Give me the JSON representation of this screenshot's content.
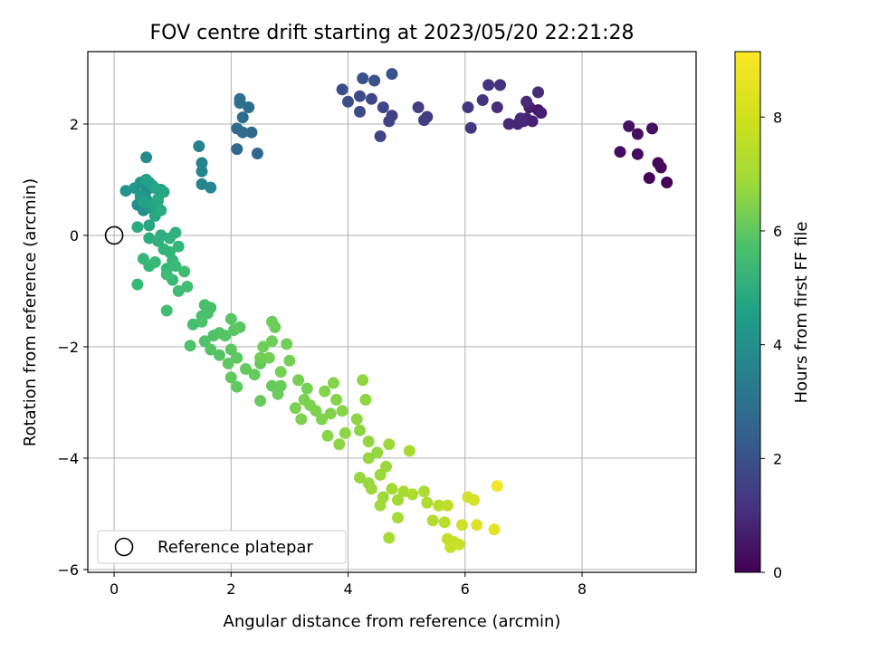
{
  "chart_data": {
    "type": "scatter",
    "title": "FOV centre drift starting at 2023/05/20 22:21:28",
    "xlabel": "Angular distance from reference (arcmin)",
    "ylabel": "Rotation from reference (arcmin)",
    "xlim": [
      -0.45,
      9.95
    ],
    "ylim": [
      -6.05,
      3.3
    ],
    "xticks": [
      0,
      2,
      4,
      6,
      8
    ],
    "yticks": [
      -6,
      -4,
      -2,
      0,
      2
    ],
    "grid": true,
    "colormap": "viridis",
    "colorbar": {
      "label": "Hours from first FF file",
      "range": [
        0,
        9.15
      ],
      "ticks": [
        0,
        2,
        4,
        6,
        8
      ]
    },
    "legend": {
      "position": "lower-left",
      "entries": [
        "Reference platepar"
      ]
    },
    "reference_point": {
      "x": 0,
      "y": 0,
      "label": "Reference platepar"
    },
    "series": [
      {
        "points": [
          [
            9.45,
            0.95,
            0.05
          ],
          [
            9.15,
            1.03,
            0.1
          ],
          [
            9.35,
            1.22,
            0.15
          ],
          [
            9.3,
            1.3,
            0.2
          ],
          [
            8.95,
            1.46,
            0.25
          ],
          [
            8.65,
            1.5,
            0.3
          ],
          [
            8.95,
            1.82,
            0.35
          ],
          [
            9.2,
            1.92,
            0.4
          ],
          [
            8.8,
            1.96,
            0.45
          ],
          [
            7.25,
            2.25,
            0.6
          ],
          [
            7.1,
            2.3,
            0.7
          ],
          [
            7.3,
            2.2,
            0.75
          ],
          [
            7.05,
            2.1,
            0.8
          ],
          [
            7.15,
            2.05,
            0.85
          ],
          [
            7.0,
            2.05,
            0.9
          ],
          [
            6.9,
            2.0,
            0.95
          ],
          [
            6.75,
            2.0,
            1.0
          ],
          [
            6.95,
            2.1,
            1.05
          ],
          [
            7.05,
            2.4,
            1.1
          ],
          [
            7.25,
            2.57,
            1.15
          ],
          [
            6.55,
            2.3,
            1.2
          ],
          [
            6.6,
            2.7,
            1.3
          ],
          [
            6.4,
            2.7,
            1.35
          ],
          [
            6.3,
            2.43,
            1.4
          ],
          [
            6.1,
            1.93,
            1.45
          ],
          [
            6.05,
            2.3,
            1.5
          ],
          [
            5.35,
            2.13,
            1.6
          ],
          [
            5.3,
            2.07,
            1.65
          ],
          [
            5.2,
            2.3,
            1.7
          ],
          [
            4.75,
            2.15,
            1.8
          ],
          [
            4.7,
            2.05,
            1.85
          ],
          [
            4.55,
            1.78,
            1.9
          ],
          [
            4.6,
            2.3,
            1.95
          ],
          [
            4.4,
            2.45,
            2.0
          ],
          [
            4.2,
            2.5,
            2.05
          ],
          [
            4.2,
            2.22,
            2.1
          ],
          [
            4.0,
            2.4,
            2.15
          ],
          [
            3.9,
            2.62,
            2.2
          ],
          [
            4.25,
            2.82,
            2.3
          ],
          [
            4.45,
            2.78,
            2.35
          ],
          [
            4.75,
            2.9,
            2.4
          ],
          [
            2.45,
            1.47,
            3.0
          ],
          [
            2.35,
            1.85,
            3.05
          ],
          [
            2.1,
            1.55,
            3.1
          ],
          [
            2.2,
            1.85,
            3.15
          ],
          [
            2.1,
            1.92,
            3.2
          ],
          [
            2.2,
            2.12,
            3.25
          ],
          [
            2.3,
            2.3,
            3.3
          ],
          [
            2.15,
            2.38,
            3.35
          ],
          [
            2.15,
            2.45,
            3.4
          ],
          [
            1.45,
            1.6,
            4.0
          ],
          [
            1.5,
            1.3,
            4.05
          ],
          [
            1.5,
            1.15,
            4.1
          ],
          [
            1.5,
            0.92,
            4.15
          ],
          [
            1.65,
            0.86,
            4.2
          ],
          [
            0.55,
            1.4,
            4.4
          ],
          [
            0.4,
            0.55,
            4.5
          ],
          [
            0.5,
            0.45,
            4.55
          ],
          [
            0.55,
            0.8,
            4.6
          ],
          [
            0.45,
            0.95,
            4.65
          ],
          [
            0.6,
            0.95,
            4.7
          ],
          [
            0.2,
            0.8,
            4.75
          ],
          [
            0.35,
            0.85,
            4.8
          ],
          [
            0.45,
            0.7,
            4.85
          ],
          [
            0.55,
            0.65,
            4.9
          ],
          [
            0.6,
            0.5,
            4.95
          ],
          [
            0.7,
            0.45,
            5.0
          ],
          [
            0.75,
            0.65,
            5.05
          ],
          [
            0.8,
            0.82,
            5.1
          ],
          [
            0.65,
            0.9,
            5.15
          ],
          [
            0.55,
            1.0,
            5.2
          ],
          [
            0.5,
            0.6,
            5.25
          ],
          [
            0.65,
            0.55,
            5.3
          ],
          [
            0.7,
            0.85,
            5.35
          ],
          [
            0.85,
            0.78,
            5.4
          ],
          [
            0.6,
            0.18,
            5.45
          ],
          [
            0.7,
            0.35,
            5.5
          ],
          [
            0.75,
            0.62,
            5.55
          ],
          [
            0.8,
            0.45,
            5.6
          ],
          [
            0.4,
            0.15,
            5.65
          ],
          [
            0.6,
            -0.05,
            5.7
          ],
          [
            0.8,
            0.0,
            5.75
          ],
          [
            0.75,
            -0.1,
            5.8
          ],
          [
            0.95,
            -0.05,
            5.85
          ],
          [
            1.05,
            0.05,
            5.9
          ],
          [
            0.85,
            -0.25,
            5.95
          ],
          [
            1.1,
            -0.2,
            6.0
          ],
          [
            0.95,
            -0.3,
            6.02
          ],
          [
            1.0,
            -0.45,
            6.05
          ],
          [
            0.9,
            -0.6,
            6.08
          ],
          [
            0.6,
            -0.55,
            6.1
          ],
          [
            0.5,
            -0.42,
            6.12
          ],
          [
            0.7,
            -0.48,
            6.15
          ],
          [
            0.4,
            -0.88,
            6.18
          ],
          [
            1.05,
            -0.55,
            6.2
          ],
          [
            1.0,
            -0.8,
            6.22
          ],
          [
            0.9,
            -0.7,
            6.25
          ],
          [
            1.2,
            -0.65,
            6.27
          ],
          [
            1.1,
            -1.0,
            6.3
          ],
          [
            1.25,
            -0.92,
            6.32
          ],
          [
            0.9,
            -1.35,
            6.35
          ],
          [
            1.35,
            -1.6,
            6.4
          ],
          [
            1.5,
            -1.45,
            6.42
          ],
          [
            1.55,
            -1.25,
            6.45
          ],
          [
            1.6,
            -1.4,
            6.47
          ],
          [
            1.65,
            -1.3,
            6.5
          ],
          [
            1.5,
            -1.55,
            6.52
          ],
          [
            1.3,
            -1.98,
            6.55
          ],
          [
            1.55,
            -1.9,
            6.57
          ],
          [
            1.7,
            -1.8,
            6.6
          ],
          [
            1.8,
            -1.75,
            6.62
          ],
          [
            1.65,
            -2.05,
            6.65
          ],
          [
            1.8,
            -2.15,
            6.67
          ],
          [
            1.9,
            -1.8,
            6.7
          ],
          [
            2.0,
            -1.5,
            6.72
          ],
          [
            2.05,
            -1.7,
            6.75
          ],
          [
            2.15,
            -1.65,
            6.77
          ],
          [
            2.0,
            -2.05,
            6.8
          ],
          [
            2.1,
            -2.2,
            6.82
          ],
          [
            1.95,
            -2.3,
            6.85
          ],
          [
            2.0,
            -2.55,
            6.87
          ],
          [
            2.1,
            -2.72,
            6.9
          ],
          [
            2.25,
            -2.4,
            6.92
          ],
          [
            2.4,
            -2.5,
            6.94
          ],
          [
            2.5,
            -2.3,
            6.96
          ],
          [
            2.5,
            -2.97,
            6.98
          ],
          [
            2.7,
            -2.7,
            7.0
          ],
          [
            2.8,
            -2.85,
            7.02
          ],
          [
            2.85,
            -2.7,
            7.04
          ],
          [
            2.7,
            -1.55,
            7.06
          ],
          [
            2.75,
            -1.65,
            7.08
          ],
          [
            2.7,
            -1.9,
            7.1
          ],
          [
            2.55,
            -2.0,
            7.12
          ],
          [
            2.5,
            -2.2,
            7.14
          ],
          [
            2.65,
            -2.2,
            7.16
          ],
          [
            2.95,
            -1.95,
            7.18
          ],
          [
            3.0,
            -2.25,
            7.2
          ],
          [
            2.85,
            -2.45,
            7.22
          ],
          [
            3.15,
            -2.6,
            7.24
          ],
          [
            3.3,
            -2.75,
            7.26
          ],
          [
            3.25,
            -2.95,
            7.28
          ],
          [
            3.1,
            -3.1,
            7.3
          ],
          [
            3.2,
            -3.3,
            7.32
          ],
          [
            3.35,
            -3.05,
            7.34
          ],
          [
            3.45,
            -3.15,
            7.36
          ],
          [
            3.55,
            -3.3,
            7.38
          ],
          [
            3.7,
            -3.2,
            7.4
          ],
          [
            3.6,
            -2.8,
            7.42
          ],
          [
            3.75,
            -2.65,
            7.44
          ],
          [
            3.8,
            -2.95,
            7.46
          ],
          [
            3.9,
            -3.15,
            7.48
          ],
          [
            3.65,
            -3.6,
            7.5
          ],
          [
            3.85,
            -3.75,
            7.52
          ],
          [
            3.95,
            -3.55,
            7.54
          ],
          [
            4.15,
            -3.3,
            7.56
          ],
          [
            4.2,
            -3.5,
            7.58
          ],
          [
            4.25,
            -2.6,
            7.6
          ],
          [
            4.3,
            -2.95,
            7.62
          ],
          [
            4.35,
            -3.7,
            7.64
          ],
          [
            4.5,
            -3.9,
            7.66
          ],
          [
            4.35,
            -4.0,
            7.68
          ],
          [
            4.2,
            -4.35,
            7.7
          ],
          [
            4.35,
            -4.45,
            7.72
          ],
          [
            4.4,
            -4.55,
            7.74
          ],
          [
            4.55,
            -4.3,
            7.76
          ],
          [
            4.65,
            -4.15,
            7.78
          ],
          [
            4.7,
            -3.75,
            7.8
          ],
          [
            4.6,
            -4.7,
            7.82
          ],
          [
            4.55,
            -4.85,
            7.84
          ],
          [
            4.75,
            -4.55,
            7.86
          ],
          [
            4.85,
            -4.75,
            7.88
          ],
          [
            4.85,
            -5.07,
            7.9
          ],
          [
            4.7,
            -5.43,
            7.92
          ],
          [
            4.95,
            -4.6,
            7.94
          ],
          [
            5.05,
            -3.87,
            7.96
          ],
          [
            5.1,
            -4.65,
            7.98
          ],
          [
            5.3,
            -4.6,
            8.0
          ],
          [
            5.35,
            -4.8,
            8.05
          ],
          [
            5.45,
            -5.12,
            8.1
          ],
          [
            5.55,
            -4.85,
            8.15
          ],
          [
            5.65,
            -5.15,
            8.2
          ],
          [
            5.7,
            -4.85,
            8.25
          ],
          [
            5.7,
            -5.45,
            8.3
          ],
          [
            5.8,
            -5.5,
            8.35
          ],
          [
            5.75,
            -5.6,
            8.4
          ],
          [
            5.9,
            -5.55,
            8.45
          ],
          [
            5.95,
            -5.2,
            8.5
          ],
          [
            6.05,
            -4.7,
            8.55
          ],
          [
            6.15,
            -4.75,
            8.6
          ],
          [
            6.2,
            -5.2,
            8.7
          ],
          [
            6.5,
            -5.28,
            8.8
          ],
          [
            6.55,
            -4.5,
            9.0
          ]
        ]
      }
    ]
  }
}
